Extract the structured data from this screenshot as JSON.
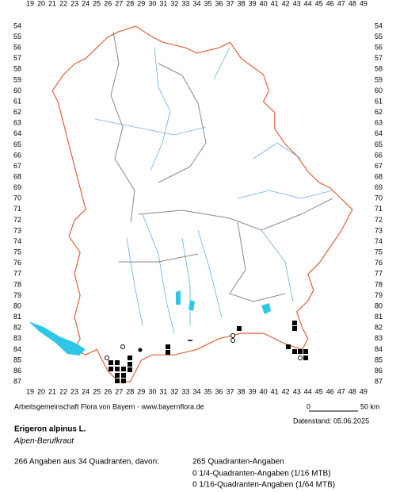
{
  "map": {
    "x_labels": [
      19,
      20,
      21,
      22,
      23,
      24,
      25,
      26,
      27,
      28,
      29,
      30,
      31,
      32,
      33,
      34,
      35,
      36,
      37,
      38,
      39,
      40,
      41,
      42,
      43,
      44,
      45,
      46,
      47,
      48,
      49
    ],
    "y_labels": [
      54,
      55,
      56,
      57,
      58,
      59,
      60,
      61,
      62,
      63,
      64,
      65,
      66,
      67,
      68,
      69,
      70,
      71,
      72,
      73,
      74,
      75,
      76,
      77,
      78,
      79,
      80,
      81,
      82,
      83,
      84,
      85,
      86,
      87
    ],
    "scale": {
      "start": "0",
      "end": "50 km"
    }
  },
  "credit": "Arbeitsgemeinschaft Flora von Bayern - www.bayernflora.de",
  "data_date": "Datenstand: 05.06.2025",
  "species": {
    "name": "Erigeron alpinus L.",
    "common_name": "Alpen-Berufkraut"
  },
  "summary": {
    "total": "266 Angaben aus 34 Quadranten, davon:",
    "details": [
      "265 Quadranten-Angaben",
      "0 1/4-Quadranten-Angaben (1/16 MTB)",
      "0 1/16-Quadranten-Angaben (1/64 MTB)"
    ]
  }
}
